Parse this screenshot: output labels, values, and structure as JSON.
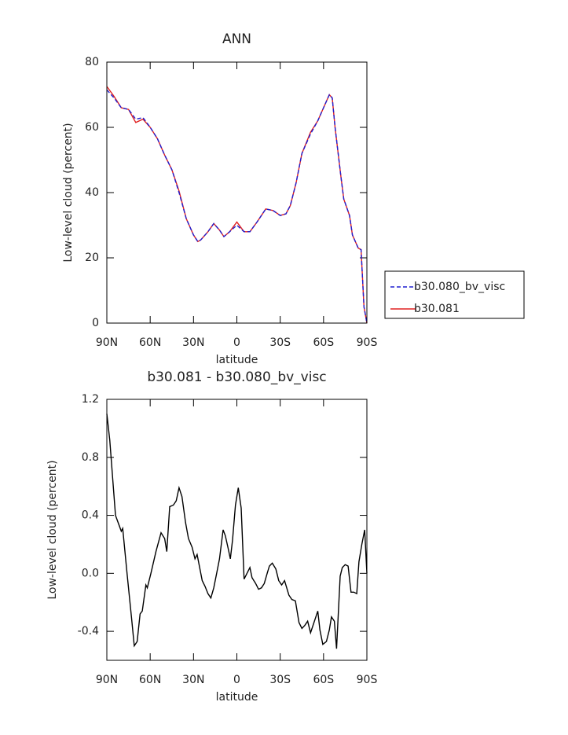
{
  "chart_data": [
    {
      "type": "line",
      "title": "ANN",
      "xlabel": "latitude",
      "ylabel": "Low-level cloud (percent)",
      "x": [
        90,
        85,
        80,
        75,
        70,
        65,
        60,
        55,
        50,
        45,
        40,
        35,
        30,
        27,
        25,
        20,
        16,
        12,
        9,
        5,
        0,
        -5,
        -9,
        -14,
        -20,
        -25,
        -30,
        -34,
        -37,
        -41,
        -45,
        -51,
        -56,
        -60,
        -64,
        -66,
        -68,
        -72,
        -74,
        -78,
        -80,
        -84,
        -86,
        -88,
        -90
      ],
      "series": [
        {
          "name": "b30.080_bv_visc",
          "color": "#1f1fd0",
          "dash": true,
          "values": [
            71.5,
            69,
            66,
            65.5,
            62.5,
            63,
            60,
            56.5,
            51.5,
            47,
            40,
            32,
            27,
            25,
            25.5,
            28,
            30.5,
            28.5,
            26.5,
            28,
            30,
            28,
            28,
            31,
            35,
            34.5,
            33,
            33.5,
            36,
            43,
            52,
            58,
            62,
            66,
            70,
            69,
            60,
            45,
            38,
            33,
            27,
            23,
            22.5,
            5,
            0
          ]
        },
        {
          "name": "b30.081",
          "color": "#e02020",
          "dash": false,
          "values": [
            72.5,
            69.5,
            66,
            65.5,
            61.5,
            62.5,
            60,
            56.5,
            51.5,
            47,
            40.5,
            32,
            27,
            25,
            25.5,
            28,
            30.5,
            28.5,
            26.5,
            28,
            31,
            28,
            28,
            31,
            35,
            34.5,
            33,
            33.5,
            36,
            43,
            52,
            58.5,
            62,
            66,
            70,
            69,
            60,
            45,
            38,
            33,
            27,
            23,
            22.5,
            5,
            0
          ]
        }
      ],
      "xlim": [
        90,
        -90
      ],
      "ylim": [
        0,
        80
      ],
      "yticks": [
        0,
        20,
        40,
        60,
        80
      ],
      "xticks": [
        {
          "value": 90,
          "label": "90N"
        },
        {
          "value": 60,
          "label": "60N"
        },
        {
          "value": 30,
          "label": "30N"
        },
        0,
        {
          "value": -30,
          "label": "30S"
        },
        {
          "value": -60,
          "label": "60S"
        },
        {
          "value": -90,
          "label": "90S"
        }
      ],
      "legend": "right"
    },
    {
      "type": "line",
      "title": "b30.081 - b30.080_bv_visc",
      "xlabel": "latitude",
      "ylabel": "Low-level cloud (percent)",
      "x": [
        90,
        88,
        84,
        80,
        79,
        76,
        73,
        71,
        69,
        67,
        65.5,
        63,
        62,
        59.5,
        56,
        52.5,
        50,
        48.5,
        46.5,
        44,
        42,
        40,
        38,
        35.5,
        33.5,
        31,
        29,
        27.5,
        24,
        22,
        20,
        18,
        16,
        14,
        12,
        9.5,
        8,
        6,
        4.5,
        3,
        1,
        -1,
        -3,
        -5,
        -7,
        -9,
        -10.5,
        -13,
        -15,
        -17,
        -19,
        -21,
        -22.5,
        -24.5,
        -27,
        -29,
        -31,
        -33,
        -36,
        -38,
        -40.5,
        -43,
        -45,
        -47,
        -49,
        -51,
        -53,
        -56,
        -57.5,
        -59.5,
        -62,
        -64,
        -65.5,
        -67.5,
        -69,
        -71.5,
        -73,
        -75,
        -77,
        -79,
        -81,
        -83,
        -84.5,
        -86.5,
        -88.5,
        -90
      ],
      "series": [
        {
          "color": "#000000",
          "values": [
            1.1,
            0.92,
            0.4,
            0.29,
            0.31,
            0.0,
            -0.3,
            -0.5,
            -0.47,
            -0.28,
            -0.26,
            -0.08,
            -0.1,
            0.0,
            0.15,
            0.28,
            0.24,
            0.15,
            0.46,
            0.47,
            0.5,
            0.59,
            0.53,
            0.35,
            0.24,
            0.18,
            0.1,
            0.13,
            -0.05,
            -0.09,
            -0.14,
            -0.17,
            -0.1,
            0.0,
            0.1,
            0.3,
            0.26,
            0.17,
            0.1,
            0.23,
            0.47,
            0.59,
            0.45,
            -0.04,
            0.0,
            0.04,
            -0.03,
            -0.07,
            -0.11,
            -0.1,
            -0.07,
            0.0,
            0.05,
            0.07,
            0.03,
            -0.05,
            -0.08,
            -0.05,
            -0.15,
            -0.18,
            -0.19,
            -0.34,
            -0.38,
            -0.36,
            -0.33,
            -0.41,
            -0.35,
            -0.26,
            -0.39,
            -0.49,
            -0.47,
            -0.39,
            -0.3,
            -0.33,
            -0.52,
            -0.02,
            0.04,
            0.06,
            0.05,
            -0.13,
            -0.13,
            -0.14,
            0.08,
            0.2,
            0.3,
            0.0
          ]
        }
      ],
      "xlim": [
        90,
        -90
      ],
      "ylim": [
        -0.6,
        1.2
      ],
      "yticks": [
        -0.4,
        {
          "value": 0,
          "label": "0.0"
        },
        0.4,
        0.8,
        1.2
      ],
      "xticks": [
        {
          "value": 90,
          "label": "90N"
        },
        {
          "value": 60,
          "label": "60N"
        },
        {
          "value": 30,
          "label": "30N"
        },
        0,
        {
          "value": -30,
          "label": "30S"
        },
        {
          "value": -60,
          "label": "60S"
        },
        {
          "value": -90,
          "label": "90S"
        }
      ]
    }
  ]
}
